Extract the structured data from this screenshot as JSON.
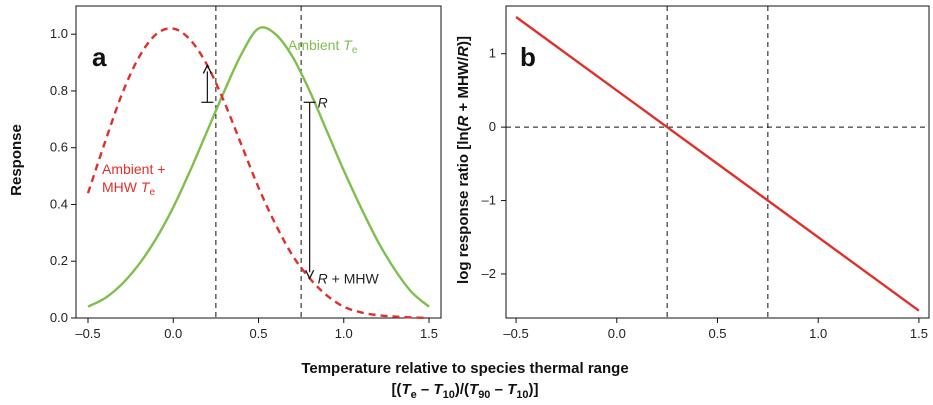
{
  "chart_data": [
    {
      "panel": "a",
      "type": "line",
      "ylabel": "Response",
      "xlim": [
        -0.5,
        1.5
      ],
      "ylim": [
        0.0,
        1.05
      ],
      "x_ticks": [
        -0.5,
        0.0,
        0.5,
        1.0,
        1.5
      ],
      "x_tick_labels": [
        "–0.5",
        "0.0",
        "0.5",
        "1.0",
        "1.5"
      ],
      "y_ticks": [
        0.0,
        0.2,
        0.4,
        0.6,
        0.8,
        1.0
      ],
      "y_tick_labels": [
        "0.0",
        "0.2",
        "0.4",
        "0.6",
        "0.8",
        "1.0"
      ],
      "vlines": [
        0.25,
        0.75
      ],
      "series": [
        {
          "name": "Ambient Te",
          "label_parts": [
            "Ambient ",
            "T",
            "e"
          ],
          "color": "#7fbf4d",
          "style": "solid",
          "x": [
            -0.5,
            -0.4,
            -0.3,
            -0.2,
            -0.1,
            0.0,
            0.1,
            0.2,
            0.3,
            0.4,
            0.5,
            0.6,
            0.7,
            0.8,
            0.9,
            1.0,
            1.1,
            1.2,
            1.3,
            1.4,
            1.5
          ],
          "y": [
            0.04,
            0.07,
            0.12,
            0.19,
            0.28,
            0.39,
            0.52,
            0.66,
            0.8,
            0.93,
            1.02,
            1.0,
            0.92,
            0.8,
            0.66,
            0.52,
            0.39,
            0.27,
            0.17,
            0.09,
            0.04
          ]
        },
        {
          "name": "Ambient + MHW Te",
          "label_lines": [
            [
              "Ambient +"
            ],
            [
              "MHW ",
              "T",
              "e"
            ]
          ],
          "color": "#e0302c",
          "style": "dashed",
          "x": [
            -0.5,
            -0.4,
            -0.3,
            -0.2,
            -0.1,
            0.0,
            0.1,
            0.2,
            0.3,
            0.4,
            0.5,
            0.6,
            0.7,
            0.8,
            0.9,
            1.0,
            1.1,
            1.2,
            1.3,
            1.4,
            1.5
          ],
          "y": [
            0.44,
            0.62,
            0.79,
            0.92,
            1.0,
            1.02,
            0.98,
            0.89,
            0.76,
            0.61,
            0.46,
            0.33,
            0.22,
            0.14,
            0.08,
            0.04,
            0.02,
            0.01,
            0.005,
            0.002,
            0.0
          ]
        }
      ],
      "annotations": [
        {
          "text": "R",
          "x": 0.8,
          "y": 0.76
        },
        {
          "text_parts": [
            "R",
            " + MHW"
          ],
          "x": 0.8,
          "y": 0.14
        }
      ],
      "arrows": [
        {
          "x": 0.2,
          "y_from": 0.76,
          "y_to": 0.89
        },
        {
          "x": 0.8,
          "y_from": 0.76,
          "y_to": 0.14
        }
      ]
    },
    {
      "panel": "b",
      "type": "line",
      "ylabel": "log response ratio [ln(R + MHW/R)]",
      "ylabel_parts": [
        "log response ratio [ln(",
        "R",
        " + MHW/",
        "R",
        ")]"
      ],
      "xlim": [
        -0.55,
        1.55
      ],
      "ylim": [
        -2.6,
        1.65
      ],
      "x_ticks": [
        -0.5,
        0.0,
        0.5,
        1.0,
        1.5
      ],
      "x_tick_labels": [
        "–0.5",
        "0.0",
        "0.5",
        "1.0",
        "1.5"
      ],
      "y_ticks": [
        -2,
        -1,
        0,
        1
      ],
      "y_tick_labels": [
        "–2",
        "–1",
        "0",
        "1"
      ],
      "vlines": [
        0.25,
        0.75
      ],
      "hlines": [
        0
      ],
      "series": [
        {
          "color": "#e0302c",
          "style": "solid",
          "x": [
            -0.5,
            1.5
          ],
          "y": [
            1.5,
            -2.5
          ]
        }
      ]
    }
  ],
  "xlabel_line1": "Temperature relative to species thermal range",
  "xlabel_line2": [
    "[(",
    "T",
    "e",
    " – ",
    "T",
    "10",
    ")/(",
    "T",
    "90",
    " – ",
    "T",
    "10",
    ")]"
  ]
}
